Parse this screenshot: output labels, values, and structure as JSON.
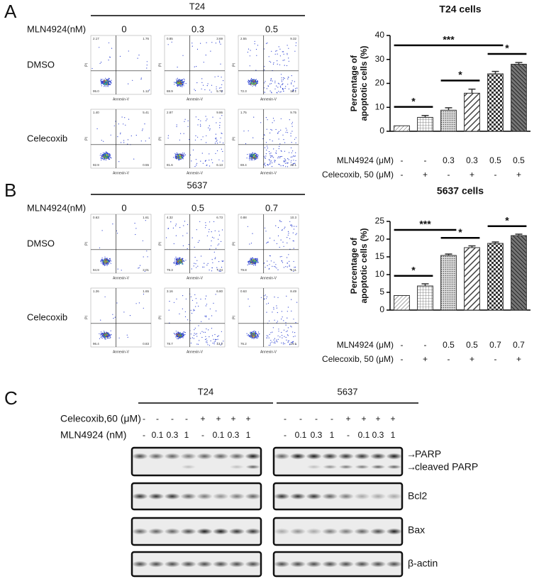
{
  "panel_a": {
    "label": "A",
    "cell_line": "T24",
    "dose_label": "MLN4924(nM)",
    "doses": [
      "0",
      "0.3",
      "0.5"
    ],
    "rows": [
      "DMSO",
      "Celecoxib"
    ],
    "x_axis": "Annexin-V",
    "y_axis": "PI",
    "quadrants": [
      [
        [
          "2.17",
          "1.76",
          "95.0",
          "1.12"
        ],
        [
          "0.85",
          "3.69",
          "88.9",
          "5.76"
        ],
        [
          "2.55",
          "9.32",
          "72.3",
          "16.1"
        ]
      ],
      [
        [
          "1.40",
          "5.41",
          "92.9",
          "0.55"
        ],
        [
          "2.87",
          "9.86",
          "81.6",
          "6.13"
        ],
        [
          "1.75",
          "9.75",
          "69.4",
          "22.1"
        ]
      ]
    ]
  },
  "panel_b": {
    "label": "B",
    "cell_line": "5637",
    "dose_label": "MLN4924(nM)",
    "doses": [
      "0",
      "0.5",
      "0.7"
    ],
    "rows": [
      "DMSO",
      "Celecoxib"
    ],
    "x_axis": "Annexin-V",
    "y_axis": "PI",
    "quadrants": [
      [
        [
          "0.63",
          "1.61",
          "94.9",
          "2.01"
        ],
        [
          "4.32",
          "6.73",
          "79.3",
          "7.74"
        ],
        [
          "0.88",
          "10.3",
          "79.8",
          "9.11"
        ]
      ],
      [
        [
          "1.26",
          "1.65",
          "96.4",
          "0.83"
        ],
        [
          "3.16",
          "6.80",
          "78.7",
          "13.2"
        ],
        [
          "0.63",
          "8.49",
          "76.2",
          "14.5"
        ]
      ]
    ]
  },
  "chart_data": [
    {
      "type": "bar",
      "title": "T24 cells",
      "ylabel": [
        "Percentage of",
        "apoptotic cells (%)"
      ],
      "ylim": [
        0,
        40
      ],
      "yticks": [
        0,
        10,
        20,
        30,
        40
      ],
      "values": [
        2.3,
        5.8,
        8.8,
        15.9,
        24,
        28
      ],
      "errors": [
        0,
        0.8,
        1,
        1.7,
        1,
        0.7
      ],
      "color": "#333333",
      "conditions": [
        {
          "label": "MLN4924 (μM)",
          "values": [
            "-",
            "-",
            "0.3",
            "0.3",
            "0.5",
            "0.5"
          ]
        },
        {
          "label": "Celecoxib, 50 (μM)",
          "values": [
            "-",
            "+",
            "-",
            "+",
            "-",
            "+"
          ]
        }
      ],
      "significance": [
        {
          "text": "*",
          "from": 0,
          "to": 1
        },
        {
          "text": "*",
          "from": 2,
          "to": 3
        },
        {
          "text": "*",
          "from": 4,
          "to": 5
        },
        {
          "text": "***",
          "from": 0,
          "to": 4
        }
      ]
    },
    {
      "type": "bar",
      "title": "5637 cells",
      "ylabel": [
        "Percentage of",
        "apoptotic cells (%)"
      ],
      "ylim": [
        0,
        25
      ],
      "yticks": [
        0,
        5,
        10,
        15,
        20,
        25
      ],
      "values": [
        4.1,
        6.8,
        15.4,
        17.6,
        18.8,
        21
      ],
      "errors": [
        0,
        0.6,
        0.4,
        0.5,
        0.4,
        0.4
      ],
      "color": "#333333",
      "conditions": [
        {
          "label": "MLN4924 (μM)",
          "values": [
            "-",
            "-",
            "0.5",
            "0.5",
            "0.7",
            "0.7"
          ]
        },
        {
          "label": "Celecoxib, 50 (μM)",
          "values": [
            "-",
            "+",
            "-",
            "+",
            "-",
            "+"
          ]
        }
      ],
      "significance": [
        {
          "text": "*",
          "from": 0,
          "to": 1
        },
        {
          "text": "*",
          "from": 2,
          "to": 3
        },
        {
          "text": "*",
          "from": 4,
          "to": 5
        },
        {
          "text": "***",
          "from": 0,
          "to": 2
        }
      ]
    }
  ],
  "panel_c": {
    "label": "C",
    "groups": [
      "T24",
      "5637"
    ],
    "treatment_label": "Celecoxib,60 (μM)",
    "treatment": [
      "-",
      "-",
      "-",
      "-",
      "+",
      "+",
      "+",
      "+"
    ],
    "dose_label": "MLN4924 (nM)",
    "doses": [
      "-",
      "0.1",
      "0.3",
      "1",
      "-",
      "0.1",
      "0.3",
      "1"
    ],
    "proteins": [
      "PARP",
      "cleaved PARP",
      "Bcl2",
      "Bax",
      "β-actin"
    ]
  }
}
